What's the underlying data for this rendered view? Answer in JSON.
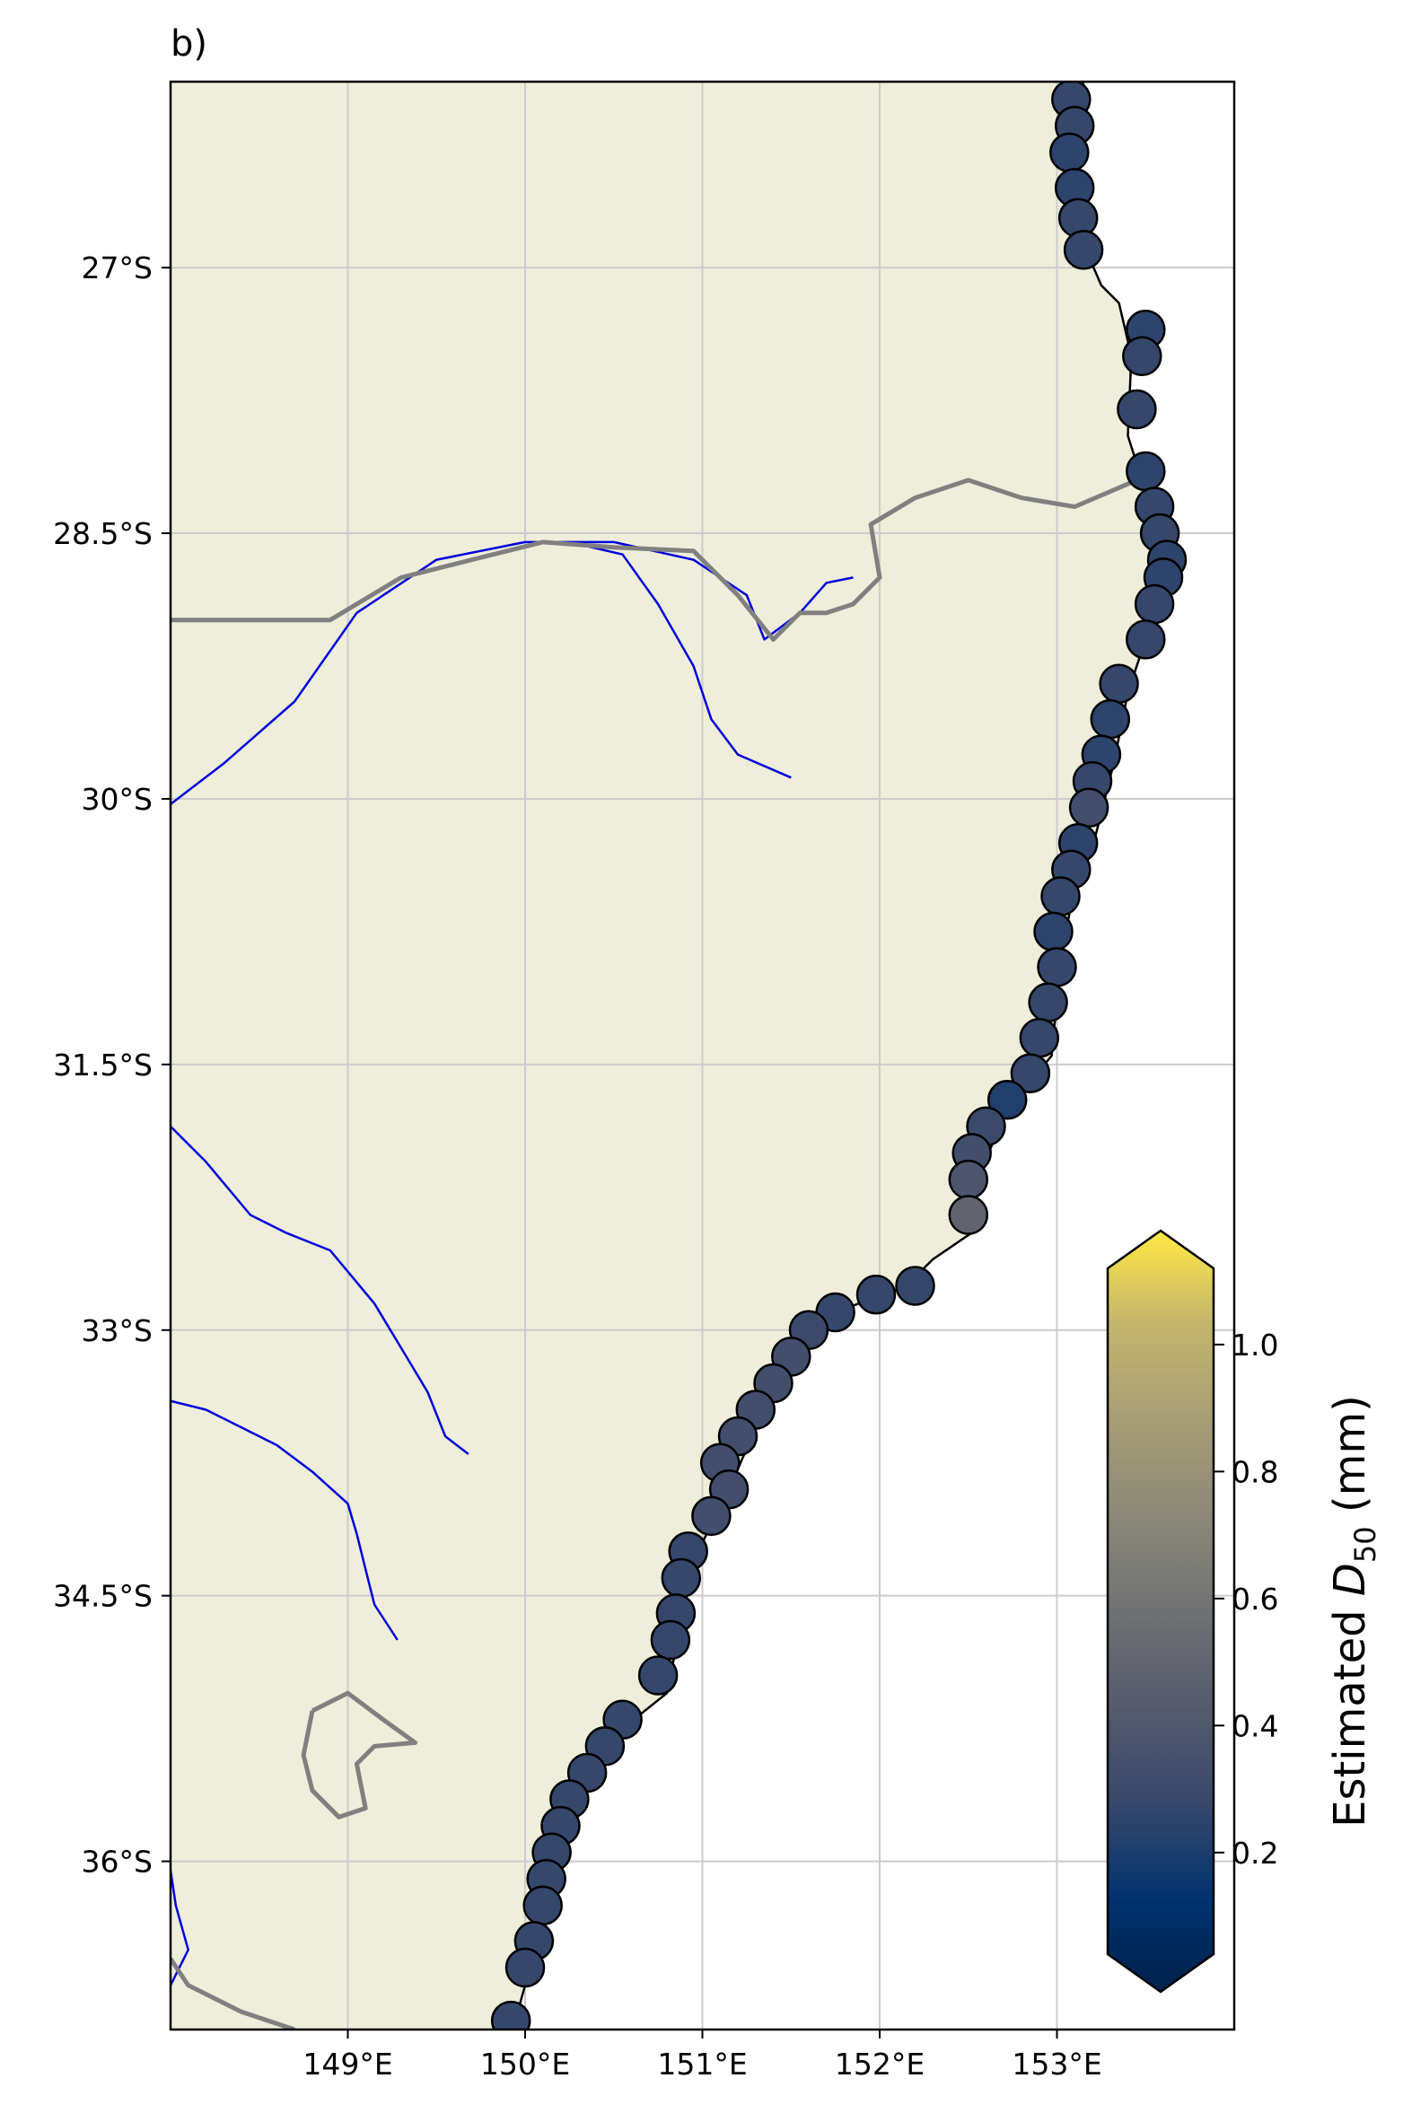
{
  "panel_label": "b)",
  "colors": {
    "land": "#efeedb",
    "ocean": "#ffffff",
    "grid": "#cccccc",
    "river": "#0000dd",
    "border": "#808080",
    "coastline": "#000000"
  },
  "chart_data": {
    "type": "map-scatter",
    "xlim": [
      148.0,
      154.0
    ],
    "ylim": [
      -36.95,
      -25.95
    ],
    "x_ticks": [
      {
        "value": 149,
        "label": "149°E"
      },
      {
        "value": 150,
        "label": "150°E"
      },
      {
        "value": 151,
        "label": "151°E"
      },
      {
        "value": 152,
        "label": "152°E"
      },
      {
        "value": 153,
        "label": "153°E"
      }
    ],
    "y_ticks": [
      {
        "value": -27,
        "label": "27°S"
      },
      {
        "value": -28.5,
        "label": "28.5°S"
      },
      {
        "value": -30,
        "label": "30°S"
      },
      {
        "value": -31.5,
        "label": "31.5°S"
      },
      {
        "value": -33,
        "label": "33°S"
      },
      {
        "value": -34.5,
        "label": "34.5°S"
      },
      {
        "value": -36,
        "label": "36°S"
      }
    ],
    "grid": true,
    "colorbar": {
      "label_prefix": "Estimated ",
      "label_symbol": "D",
      "label_subscript": "50",
      "label_suffix": " (mm)",
      "range": [
        0.04,
        1.12
      ],
      "extend": "both",
      "colormap": "cividis",
      "ticks": [
        {
          "value": 0.2,
          "label": "0.2"
        },
        {
          "value": 0.4,
          "label": "0.4"
        },
        {
          "value": 0.6,
          "label": "0.6"
        },
        {
          "value": 0.8,
          "label": "0.8"
        },
        {
          "value": 1.0,
          "label": "1.0"
        }
      ]
    },
    "coastline": [
      [
        153.15,
        -25.95
      ],
      [
        153.1,
        -26.3
      ],
      [
        153.12,
        -26.8
      ],
      [
        153.25,
        -27.1
      ],
      [
        153.35,
        -27.2
      ],
      [
        153.42,
        -27.5
      ],
      [
        153.4,
        -27.95
      ],
      [
        153.48,
        -28.2
      ],
      [
        153.58,
        -28.6
      ],
      [
        153.55,
        -28.95
      ],
      [
        153.4,
        -29.4
      ],
      [
        153.32,
        -29.8
      ],
      [
        153.22,
        -30.2
      ],
      [
        153.1,
        -30.5
      ],
      [
        153.02,
        -30.9
      ],
      [
        152.97,
        -31.45
      ],
      [
        152.85,
        -31.6
      ],
      [
        152.7,
        -31.8
      ],
      [
        152.55,
        -32.15
      ],
      [
        152.52,
        -32.45
      ],
      [
        152.3,
        -32.6
      ],
      [
        152.15,
        -32.75
      ],
      [
        151.75,
        -32.9
      ],
      [
        151.5,
        -33.15
      ],
      [
        151.28,
        -33.6
      ],
      [
        151.15,
        -33.9
      ],
      [
        151.0,
        -34.2
      ],
      [
        150.9,
        -34.5
      ],
      [
        150.85,
        -34.8
      ],
      [
        150.8,
        -35.05
      ],
      [
        150.55,
        -35.25
      ],
      [
        150.35,
        -35.55
      ],
      [
        150.2,
        -35.8
      ],
      [
        150.15,
        -36.1
      ],
      [
        150.1,
        -36.4
      ],
      [
        150.0,
        -36.7
      ],
      [
        149.93,
        -36.95
      ]
    ],
    "rivers": [
      [
        [
          148.0,
          -30.03
        ],
        [
          148.3,
          -29.8
        ],
        [
          148.7,
          -29.45
        ],
        [
          149.05,
          -28.95
        ],
        [
          149.5,
          -28.65
        ],
        [
          150.0,
          -28.55
        ],
        [
          150.5,
          -28.55
        ],
        [
          150.95,
          -28.65
        ],
        [
          151.25,
          -28.85
        ],
        [
          151.35,
          -29.1
        ],
        [
          151.55,
          -28.95
        ],
        [
          151.7,
          -28.78
        ],
        [
          151.85,
          -28.75
        ]
      ],
      [
        [
          150.25,
          -28.55
        ],
        [
          150.55,
          -28.62
        ],
        [
          150.75,
          -28.9
        ],
        [
          150.95,
          -29.25
        ],
        [
          151.05,
          -29.55
        ],
        [
          151.2,
          -29.75
        ],
        [
          151.5,
          -29.88
        ]
      ],
      [
        [
          148.0,
          -31.85
        ],
        [
          148.2,
          -32.05
        ],
        [
          148.45,
          -32.35
        ],
        [
          148.65,
          -32.45
        ],
        [
          148.9,
          -32.55
        ],
        [
          149.15,
          -32.85
        ],
        [
          149.3,
          -33.1
        ],
        [
          149.45,
          -33.35
        ],
        [
          149.55,
          -33.6
        ],
        [
          149.68,
          -33.7
        ]
      ],
      [
        [
          148.0,
          -33.4
        ],
        [
          148.2,
          -33.45
        ],
        [
          148.4,
          -33.55
        ],
        [
          148.6,
          -33.65
        ],
        [
          148.8,
          -33.8
        ],
        [
          149.0,
          -33.98
        ],
        [
          149.05,
          -34.15
        ],
        [
          149.1,
          -34.35
        ],
        [
          149.15,
          -34.55
        ],
        [
          149.28,
          -34.75
        ]
      ],
      [
        [
          148.0,
          -36.05
        ],
        [
          148.03,
          -36.25
        ],
        [
          148.1,
          -36.5
        ],
        [
          148.0,
          -36.7
        ]
      ]
    ],
    "borders": [
      [
        [
          148.0,
          -28.99
        ],
        [
          148.45,
          -28.99
        ],
        [
          148.9,
          -28.99
        ],
        [
          149.3,
          -28.75
        ],
        [
          149.7,
          -28.65
        ],
        [
          150.1,
          -28.55
        ],
        [
          150.5,
          -28.58
        ],
        [
          150.95,
          -28.6
        ],
        [
          151.2,
          -28.85
        ],
        [
          151.4,
          -29.1
        ],
        [
          151.55,
          -28.95
        ],
        [
          151.7,
          -28.95
        ],
        [
          151.85,
          -28.9
        ],
        [
          152.0,
          -28.75
        ],
        [
          151.95,
          -28.45
        ],
        [
          152.2,
          -28.3
        ],
        [
          152.5,
          -28.2
        ],
        [
          152.8,
          -28.3
        ],
        [
          153.1,
          -28.35
        ],
        [
          153.45,
          -28.2
        ],
        [
          153.52,
          -28.15
        ]
      ],
      [
        [
          148.8,
          -35.15
        ],
        [
          148.75,
          -35.4
        ],
        [
          148.8,
          -35.6
        ],
        [
          148.95,
          -35.75
        ],
        [
          149.1,
          -35.7
        ],
        [
          149.05,
          -35.45
        ],
        [
          149.15,
          -35.35
        ],
        [
          149.38,
          -35.33
        ],
        [
          149.2,
          -35.2
        ],
        [
          149.0,
          -35.05
        ],
        [
          148.8,
          -35.15
        ]
      ],
      [
        [
          148.0,
          -36.55
        ],
        [
          148.1,
          -36.7
        ],
        [
          148.4,
          -36.85
        ],
        [
          148.7,
          -36.95
        ]
      ]
    ],
    "points": [
      [
        153.08,
        -26.05,
        0.3
      ],
      [
        153.1,
        -26.2,
        0.3
      ],
      [
        153.07,
        -26.35,
        0.28
      ],
      [
        153.1,
        -26.55,
        0.28
      ],
      [
        153.12,
        -26.72,
        0.3
      ],
      [
        153.15,
        -26.9,
        0.3
      ],
      [
        153.5,
        -27.35,
        0.28
      ],
      [
        153.48,
        -27.5,
        0.3
      ],
      [
        153.45,
        -27.8,
        0.3
      ],
      [
        153.5,
        -28.15,
        0.28
      ],
      [
        153.55,
        -28.35,
        0.3
      ],
      [
        153.58,
        -28.5,
        0.3
      ],
      [
        153.62,
        -28.65,
        0.28
      ],
      [
        153.6,
        -28.75,
        0.28
      ],
      [
        153.55,
        -28.9,
        0.3
      ],
      [
        153.5,
        -29.1,
        0.3
      ],
      [
        153.35,
        -29.35,
        0.3
      ],
      [
        153.3,
        -29.55,
        0.28
      ],
      [
        153.25,
        -29.75,
        0.28
      ],
      [
        153.2,
        -29.9,
        0.3
      ],
      [
        153.18,
        -30.05,
        0.35
      ],
      [
        153.12,
        -30.25,
        0.28
      ],
      [
        153.08,
        -30.4,
        0.3
      ],
      [
        153.02,
        -30.55,
        0.3
      ],
      [
        152.98,
        -30.75,
        0.28
      ],
      [
        153.0,
        -30.95,
        0.3
      ],
      [
        152.95,
        -31.15,
        0.3
      ],
      [
        152.9,
        -31.35,
        0.3
      ],
      [
        152.85,
        -31.55,
        0.3
      ],
      [
        152.72,
        -31.7,
        0.25
      ],
      [
        152.6,
        -31.85,
        0.32
      ],
      [
        152.52,
        -32.0,
        0.35
      ],
      [
        152.5,
        -32.15,
        0.4
      ],
      [
        152.5,
        -32.35,
        0.5
      ],
      [
        152.2,
        -32.75,
        0.3
      ],
      [
        151.98,
        -32.8,
        0.3
      ],
      [
        151.75,
        -32.9,
        0.3
      ],
      [
        151.6,
        -33.0,
        0.32
      ],
      [
        151.5,
        -33.15,
        0.35
      ],
      [
        151.4,
        -33.3,
        0.35
      ],
      [
        151.3,
        -33.45,
        0.35
      ],
      [
        151.2,
        -33.6,
        0.35
      ],
      [
        151.1,
        -33.75,
        0.35
      ],
      [
        151.15,
        -33.9,
        0.35
      ],
      [
        151.05,
        -34.05,
        0.35
      ],
      [
        150.92,
        -34.25,
        0.3
      ],
      [
        150.88,
        -34.4,
        0.3
      ],
      [
        150.85,
        -34.6,
        0.3
      ],
      [
        150.82,
        -34.75,
        0.3
      ],
      [
        150.75,
        -34.95,
        0.3
      ],
      [
        150.55,
        -35.2,
        0.3
      ],
      [
        150.45,
        -35.35,
        0.3
      ],
      [
        150.35,
        -35.5,
        0.3
      ],
      [
        150.25,
        -35.65,
        0.3
      ],
      [
        150.2,
        -35.8,
        0.3
      ],
      [
        150.15,
        -35.95,
        0.3
      ],
      [
        150.12,
        -36.1,
        0.3
      ],
      [
        150.1,
        -36.25,
        0.3
      ],
      [
        150.05,
        -36.45,
        0.3
      ],
      [
        150.0,
        -36.6,
        0.3
      ],
      [
        149.92,
        -36.9,
        0.3
      ]
    ]
  }
}
